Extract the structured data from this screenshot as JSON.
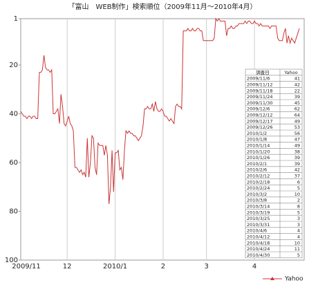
{
  "chart_data": {
    "type": "line",
    "title": "「富山　WEB制作」検索順位（2009年11月〜2010年4月）",
    "categories": [
      "2009/11",
      null,
      null,
      null,
      null,
      null,
      null,
      null,
      null,
      null,
      null,
      null,
      null,
      null,
      null,
      null,
      null,
      null,
      null,
      null,
      null,
      null,
      null,
      null,
      null,
      null,
      null,
      null,
      null,
      null,
      "12",
      null,
      null,
      null,
      null,
      null,
      null,
      null,
      null,
      null,
      null,
      null,
      null,
      null,
      null,
      null,
      null,
      null,
      null,
      null,
      null,
      null,
      null,
      null,
      null,
      null,
      null,
      null,
      null,
      null,
      null,
      "2010/1",
      null,
      null,
      null,
      null,
      null,
      null,
      null,
      null,
      null,
      null,
      null,
      null,
      null,
      null,
      null,
      null,
      null,
      null,
      null,
      null,
      null,
      null,
      null,
      null,
      null,
      null,
      null,
      null,
      null,
      null,
      "2",
      null,
      null,
      null,
      null,
      null,
      null,
      null,
      null,
      null,
      null,
      null,
      null,
      null,
      null,
      null,
      null,
      null,
      null,
      null,
      null,
      null,
      null,
      null,
      null,
      null,
      null,
      null,
      "3",
      null,
      null,
      null,
      null,
      null,
      null,
      null,
      null,
      null,
      null,
      null,
      null,
      null,
      null,
      null,
      null,
      null,
      null,
      null,
      null,
      null,
      null,
      null,
      null,
      null,
      null,
      null,
      null,
      null,
      null,
      "4",
      null,
      null,
      null,
      null,
      null,
      null,
      null,
      null,
      null,
      null,
      null,
      null,
      null,
      null,
      null,
      null,
      null,
      null,
      null,
      null,
      null,
      null,
      null,
      null,
      null,
      null,
      null,
      null,
      null
    ],
    "series": [
      {
        "name": "Yahoo",
        "color": "#cc3333",
        "values": [
          39,
          40,
          41,
          41,
          42,
          41,
          41,
          42,
          41,
          41,
          42,
          42,
          23,
          23,
          22,
          16,
          21,
          22,
          22,
          23,
          22,
          40,
          40,
          39,
          38,
          44,
          32,
          37,
          44,
          45,
          43,
          41,
          44,
          45,
          47,
          62,
          62,
          63,
          64,
          63,
          65,
          64,
          66,
          50,
          66,
          60,
          49,
          50,
          62,
          65,
          52,
          53,
          53,
          53,
          57,
          53,
          57,
          77,
          70,
          55,
          72,
          56,
          56,
          55,
          63,
          62,
          67,
          55,
          47,
          48,
          47,
          48,
          48,
          49,
          49,
          50,
          51,
          50,
          49,
          45,
          38,
          38,
          37,
          38,
          38,
          36,
          39,
          35,
          38,
          39,
          39,
          38,
          39,
          41,
          41,
          42,
          43,
          42,
          43,
          44,
          37,
          36,
          37,
          37,
          38,
          6,
          6,
          6,
          5,
          6,
          6,
          5,
          6,
          6,
          5,
          5,
          6,
          6,
          10,
          10,
          10,
          10,
          10,
          10,
          10,
          9,
          1,
          2,
          1,
          2,
          2,
          2,
          2,
          8,
          5,
          5,
          4,
          5,
          5,
          4,
          4,
          3,
          3,
          3,
          3,
          2,
          3,
          2,
          2,
          3,
          3,
          2,
          3,
          3,
          4,
          3,
          4,
          4,
          4,
          4,
          4,
          5,
          4,
          4,
          4,
          4,
          9,
          10,
          10,
          10,
          7,
          5,
          11,
          8,
          11,
          9,
          10,
          11,
          9,
          7,
          5
        ]
      }
    ],
    "ylim": [
      100,
      1
    ],
    "yticks": [
      1,
      20,
      40,
      60,
      80,
      100
    ],
    "x_grid": true,
    "legend": "bottom-right",
    "table": {
      "header": [
        "調査日",
        "Yahoo"
      ],
      "rows": [
        [
          "2009/11/6",
          41
        ],
        [
          "2009/11/12",
          42
        ],
        [
          "2009/11/18",
          22
        ],
        [
          "2009/11/24",
          39
        ],
        [
          "2009/11/30",
          45
        ],
        [
          "2009/12/6",
          62
        ],
        [
          "2009/12/12",
          64
        ],
        [
          "2009/12/17",
          49
        ],
        [
          "2009/12/26",
          53
        ],
        [
          "2010/1/2",
          56
        ],
        [
          "2010/1/8",
          47
        ],
        [
          "2010/1/14",
          49
        ],
        [
          "2010/1/20",
          38
        ],
        [
          "2010/1/26",
          39
        ],
        [
          "2010/2/1",
          39
        ],
        [
          "2010/2/6",
          42
        ],
        [
          "2010/2/12",
          37
        ],
        [
          "2010/2/18",
          6
        ],
        [
          "2010/2/24",
          5
        ],
        [
          "2010/3/2",
          10
        ],
        [
          "2010/3/8",
          2
        ],
        [
          "2010/3/14",
          8
        ],
        [
          "2010/3/19",
          5
        ],
        [
          "2010/3/25",
          3
        ],
        [
          "2010/3/31",
          3
        ],
        [
          "2010/4/6",
          4
        ],
        [
          "2010/4/12",
          4
        ],
        [
          "2010/4/18",
          10
        ],
        [
          "2010/4/24",
          11
        ],
        [
          "2010/4/30",
          5
        ]
      ]
    }
  }
}
